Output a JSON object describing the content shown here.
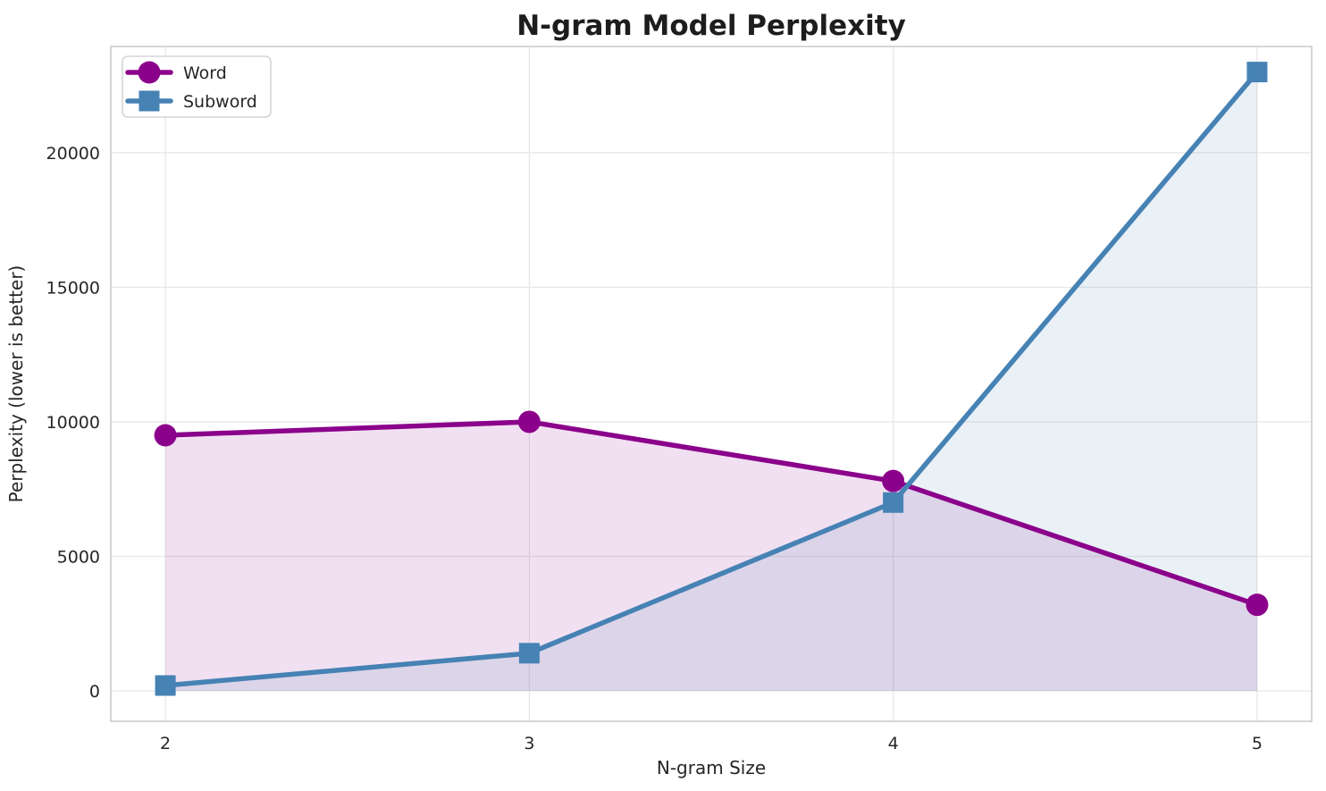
{
  "chart_data": {
    "type": "line",
    "title": "N-gram Model Perplexity",
    "xlabel": "N-gram Size",
    "ylabel": "Perplexity (lower is better)",
    "x": [
      2,
      3,
      4,
      5
    ],
    "xtick_labels": [
      "2",
      "3",
      "4",
      "5"
    ],
    "ytick_values": [
      0,
      5000,
      10000,
      15000,
      20000
    ],
    "ytick_labels": [
      "0",
      "5000",
      "10000",
      "15000",
      "20000"
    ],
    "series": [
      {
        "name": "Word",
        "marker": "circle",
        "color": "#8B008B",
        "values": [
          9500,
          10000,
          7800,
          3200
        ]
      },
      {
        "name": "Subword",
        "marker": "square",
        "color": "#4682B4",
        "values": [
          200,
          1400,
          7000,
          23000
        ]
      }
    ],
    "fill_to_zero": true,
    "fill_opacity": 0.12,
    "xlim": [
      1.85,
      5.15
    ],
    "ylim": [
      -1130,
      23950
    ],
    "grid": true,
    "legend_position": "upper left",
    "colors": {
      "grid": "#e7e7e7",
      "spine": "#c9c9c9",
      "tick_text": "#262626",
      "title_text": "#1d1d1d",
      "legend_border": "#cccccc",
      "background": "#ffffff"
    }
  }
}
